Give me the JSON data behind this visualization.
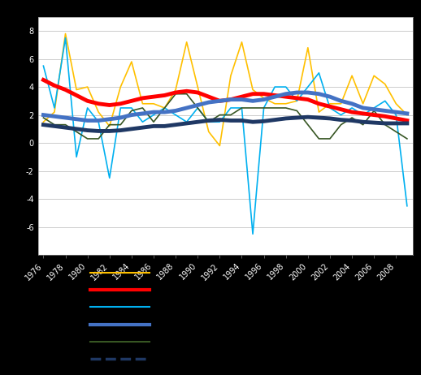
{
  "years": [
    1976,
    1977,
    1978,
    1979,
    1980,
    1981,
    1982,
    1983,
    1984,
    1985,
    1986,
    1987,
    1988,
    1989,
    1990,
    1991,
    1992,
    1993,
    1994,
    1995,
    1996,
    1997,
    1998,
    1999,
    2000,
    2001,
    2002,
    2003,
    2004,
    2005,
    2006,
    2007,
    2008,
    2009
  ],
  "yellow": [
    1.5,
    2.2,
    7.8,
    3.8,
    4.0,
    2.2,
    1.2,
    4.0,
    5.8,
    2.8,
    2.8,
    2.5,
    3.8,
    7.2,
    4.0,
    0.8,
    -0.2,
    4.8,
    7.2,
    3.8,
    3.2,
    2.8,
    2.8,
    3.0,
    6.8,
    2.2,
    2.8,
    2.8,
    4.8,
    2.8,
    4.8,
    4.2,
    2.8,
    2.0
  ],
  "red_smooth": [
    4.5,
    4.1,
    3.8,
    3.4,
    3.0,
    2.8,
    2.7,
    2.8,
    3.0,
    3.2,
    3.3,
    3.4,
    3.6,
    3.7,
    3.6,
    3.3,
    3.0,
    3.1,
    3.3,
    3.5,
    3.5,
    3.4,
    3.3,
    3.2,
    3.1,
    2.8,
    2.6,
    2.4,
    2.2,
    2.1,
    2.0,
    1.9,
    1.75,
    1.6
  ],
  "cyan": [
    5.5,
    2.5,
    7.5,
    -1.0,
    2.5,
    1.5,
    -2.5,
    2.5,
    2.5,
    1.5,
    2.0,
    2.5,
    2.0,
    1.5,
    2.5,
    1.5,
    1.5,
    2.5,
    2.5,
    -6.5,
    2.5,
    4.0,
    4.0,
    3.0,
    4.0,
    5.0,
    2.5,
    2.0,
    2.5,
    2.0,
    2.5,
    3.0,
    2.0,
    -4.5
  ],
  "blue_smooth": [
    2.0,
    1.9,
    1.8,
    1.7,
    1.6,
    1.6,
    1.7,
    1.8,
    2.0,
    2.1,
    2.2,
    2.2,
    2.3,
    2.5,
    2.7,
    2.9,
    3.0,
    3.1,
    3.1,
    3.0,
    3.1,
    3.3,
    3.5,
    3.6,
    3.6,
    3.5,
    3.3,
    3.0,
    2.8,
    2.5,
    2.4,
    2.3,
    2.2,
    2.1
  ],
  "green": [
    1.8,
    1.3,
    1.3,
    0.8,
    0.3,
    0.3,
    1.3,
    1.3,
    2.3,
    2.5,
    1.5,
    2.5,
    3.5,
    3.5,
    2.5,
    1.5,
    2.0,
    2.0,
    2.5,
    2.5,
    2.5,
    2.5,
    2.5,
    2.3,
    1.3,
    0.3,
    0.3,
    1.3,
    1.8,
    1.3,
    2.3,
    1.3,
    0.8,
    0.3
  ],
  "navy_smooth": [
    1.3,
    1.2,
    1.1,
    1.0,
    0.9,
    0.85,
    0.85,
    0.9,
    1.0,
    1.1,
    1.2,
    1.2,
    1.3,
    1.4,
    1.5,
    1.6,
    1.65,
    1.6,
    1.6,
    1.5,
    1.55,
    1.65,
    1.75,
    1.8,
    1.85,
    1.8,
    1.75,
    1.65,
    1.6,
    1.5,
    1.45,
    1.4,
    1.4,
    1.4
  ],
  "ylim": [
    -8,
    9
  ],
  "yticks": [
    -6,
    -4,
    -2,
    0,
    2,
    4,
    6,
    8
  ],
  "plot_bg": "#ffffff",
  "outer_bg": "#000000",
  "grid_color": "#cccccc",
  "yellow_color": "#FFC000",
  "red_color": "#FF0000",
  "cyan_color": "#00B0F0",
  "blue_color": "#4472C4",
  "green_color": "#375623",
  "navy_color": "#1F3864",
  "tick_label_color": "#ffffff",
  "legend_line_colors": [
    "#FFC000",
    "#FF0000",
    "#00B0F0",
    "#4472C4",
    "#375623",
    "#1F3864"
  ],
  "legend_line_widths": [
    1.5,
    3.0,
    1.5,
    3.0,
    1.5,
    2.5
  ],
  "legend_line_styles": [
    "-",
    "-",
    "-",
    "-",
    "-",
    "--"
  ]
}
